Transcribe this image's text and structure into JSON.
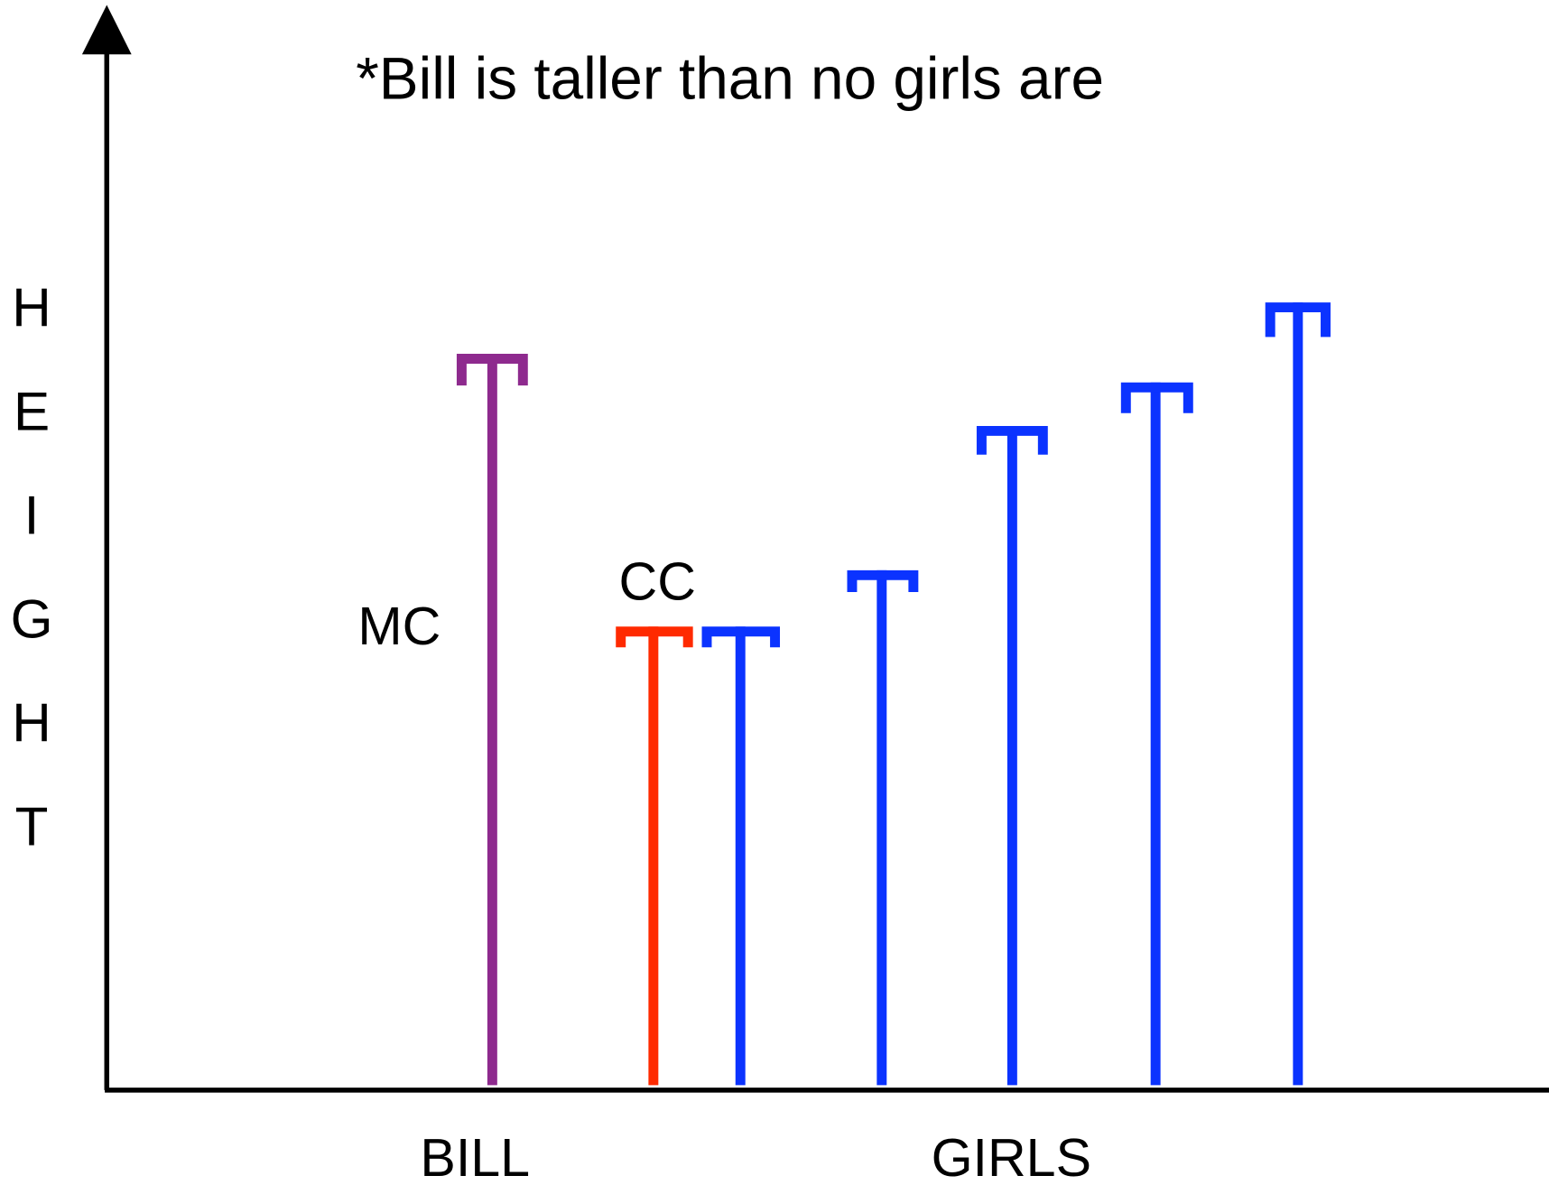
{
  "title": "*Bill is taller than no girls are",
  "y_axis_label": [
    "H",
    "E",
    "I",
    "G",
    "H",
    "T"
  ],
  "marker_labels": [
    "MC",
    "CC"
  ],
  "x_axis_labels": [
    "BILL",
    "GIRLS"
  ]
}
